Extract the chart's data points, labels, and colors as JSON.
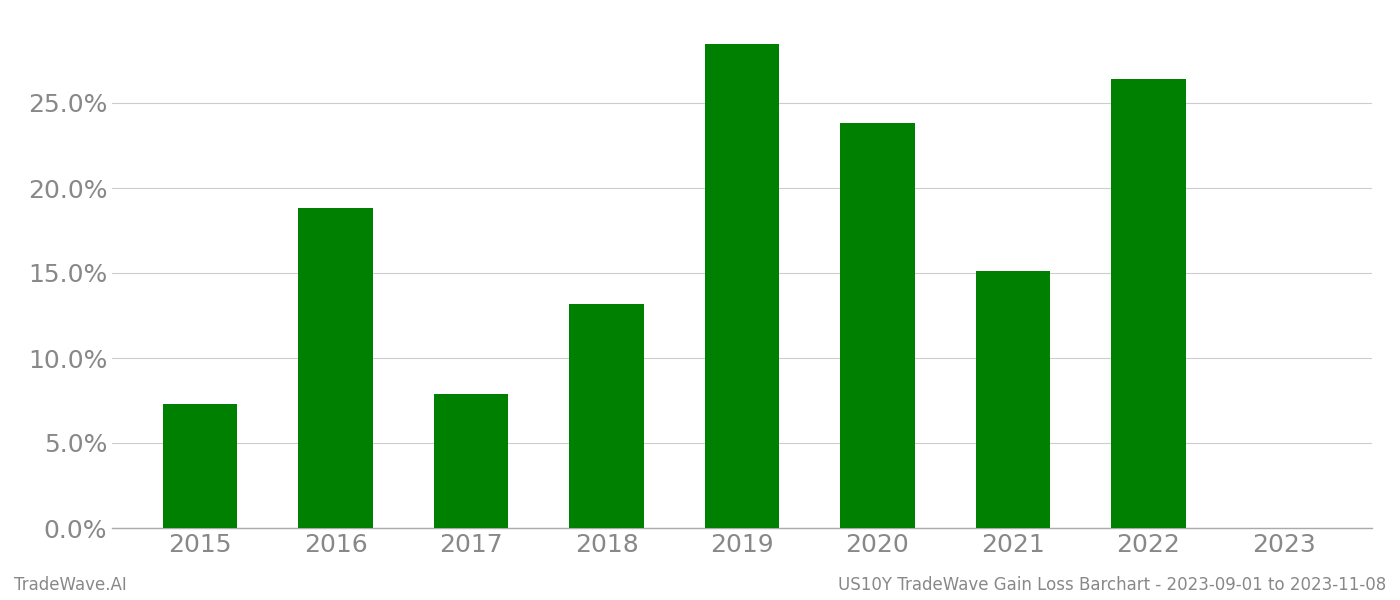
{
  "categories": [
    "2015",
    "2016",
    "2017",
    "2018",
    "2019",
    "2020",
    "2021",
    "2022",
    "2023"
  ],
  "values": [
    0.073,
    0.188,
    0.079,
    0.132,
    0.285,
    0.238,
    0.151,
    0.264,
    null
  ],
  "bar_color": "#008000",
  "background_color": "#ffffff",
  "grid_color": "#cccccc",
  "axis_color": "#aaaaaa",
  "tick_label_color": "#888888",
  "ylim": [
    0,
    0.3
  ],
  "yticks": [
    0.0,
    0.05,
    0.1,
    0.15,
    0.2,
    0.25
  ],
  "footer_left": "TradeWave.AI",
  "footer_right": "US10Y TradeWave Gain Loss Barchart - 2023-09-01 to 2023-11-08",
  "footer_color": "#888888",
  "footer_fontsize": 12,
  "tick_fontsize": 18,
  "bar_width": 0.55
}
